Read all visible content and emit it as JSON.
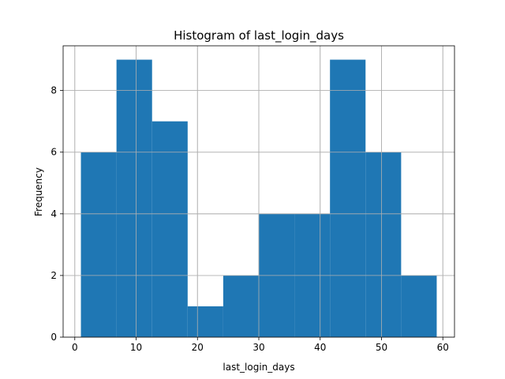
{
  "chart_data": {
    "type": "histogram",
    "title": "Histogram of last_login_days",
    "xlabel": "last_login_days",
    "ylabel": "Frequency",
    "xlim": [
      -1.9,
      61.9
    ],
    "ylim": [
      0,
      9.45
    ],
    "xticks": [
      0,
      10,
      20,
      30,
      40,
      50,
      60
    ],
    "yticks": [
      0,
      2,
      4,
      6,
      8
    ],
    "grid": true,
    "bar_color": "#1f77b4",
    "bins": [
      {
        "x0": 1.0,
        "x1": 6.8,
        "count": 6
      },
      {
        "x0": 6.8,
        "x1": 12.6,
        "count": 9
      },
      {
        "x0": 12.6,
        "x1": 18.4,
        "count": 7
      },
      {
        "x0": 18.4,
        "x1": 24.2,
        "count": 1
      },
      {
        "x0": 24.2,
        "x1": 30.0,
        "count": 2
      },
      {
        "x0": 30.0,
        "x1": 35.8,
        "count": 4
      },
      {
        "x0": 35.8,
        "x1": 41.6,
        "count": 4
      },
      {
        "x0": 41.6,
        "x1": 47.4,
        "count": 9
      },
      {
        "x0": 47.4,
        "x1": 53.2,
        "count": 6
      },
      {
        "x0": 53.2,
        "x1": 59.0,
        "count": 2
      }
    ]
  }
}
